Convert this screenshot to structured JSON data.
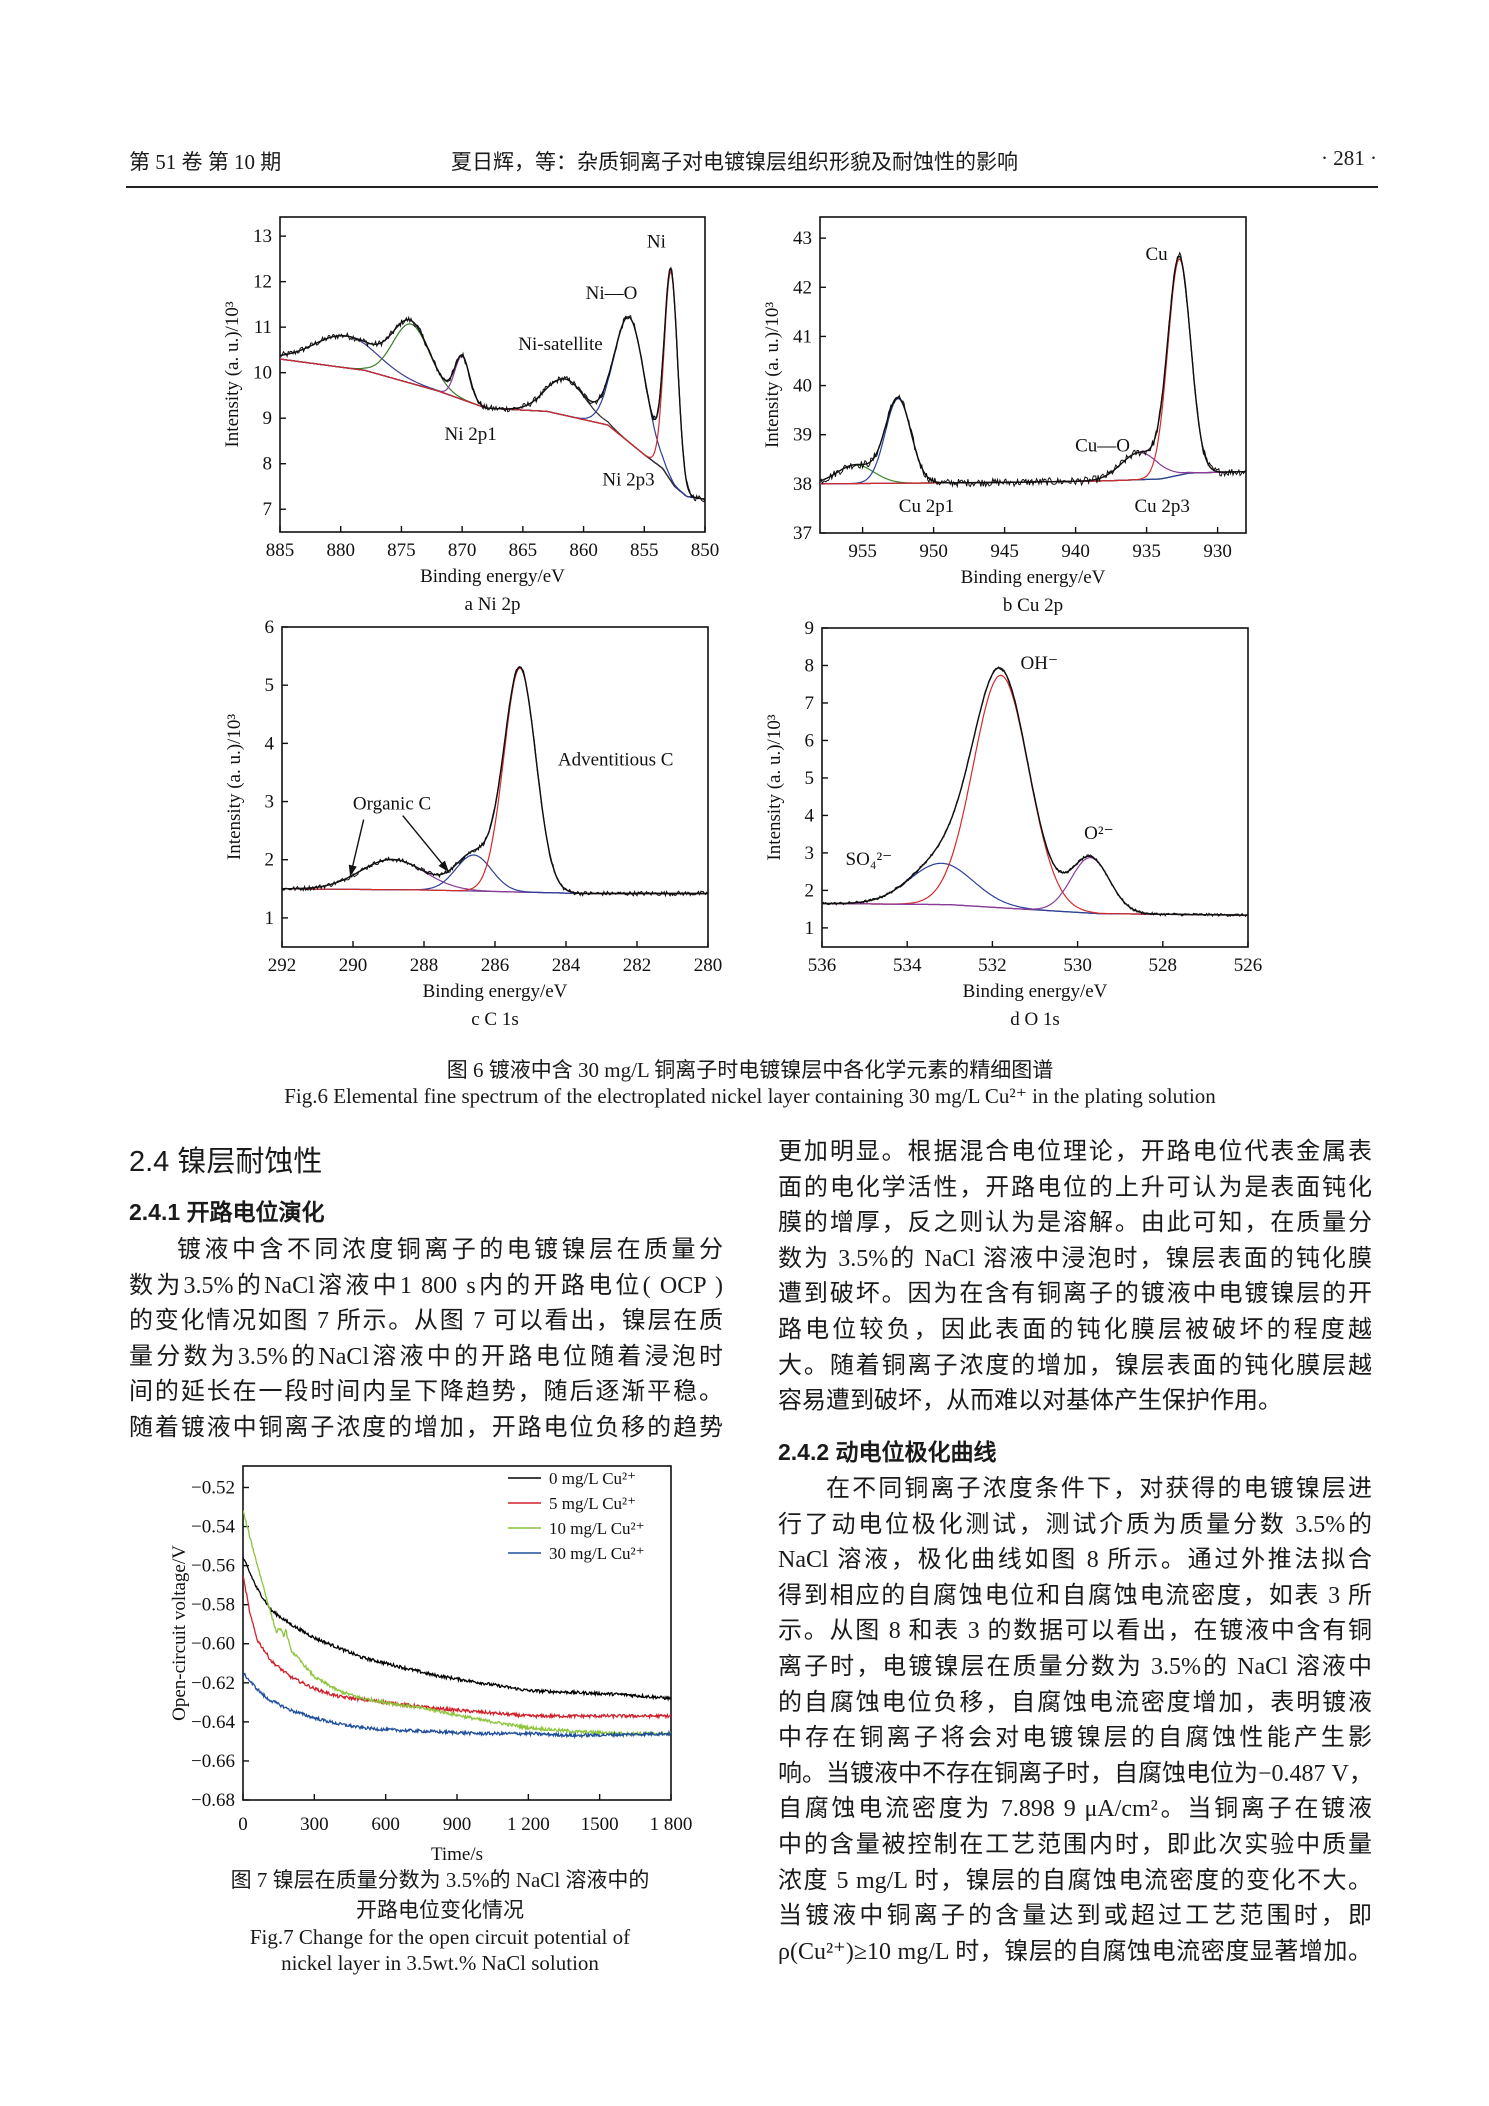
{
  "header": {
    "volume_issue": "第 51 卷  第 10 期",
    "title": "夏日辉，等：杂质铜离子对电镀镍层组织形貌及耐蚀性的影响",
    "page": "· 281 ·"
  },
  "figure6": {
    "caption_cn": "图 6   镀液中含 30 mg/L 铜离子时电镀镍层中各化学元素的精细图谱",
    "caption_en": "Fig.6 Elemental fine spectrum of the electroplated nickel layer containing 30 mg/L Cu²⁺ in the plating solution"
  },
  "section": {
    "heading": "2.4   镍层耐蚀性",
    "sub1": "2.4.1   开路电位演化",
    "sub2": "2.4.2   动电位极化曲线"
  },
  "left_lines": [
    "镀液中含不同浓度铜离子的电镀镍层在质量分",
    "数为3.5%的NaCl溶液中1 800 s内的开路电位( OCP )",
    "的变化情况如图 7 所示。从图 7 可以看出，镍层在质",
    "量分数为3.5%的NaCl溶液中的开路电位随着浸泡时",
    "间的延长在一段时间内呈下降趋势，随后逐渐平稳。",
    "随着镀液中铜离子浓度的增加，开路电位负移的趋势"
  ],
  "right_lines_a": [
    "更加明显。根据混合电位理论，开路电位代表金属表",
    "面的电化学活性，开路电位的上升可认为是表面钝化",
    "膜的增厚，反之则认为是溶解。由此可知，在质量分",
    "数为 3.5%的 NaCl 溶液中浸泡时，镍层表面的钝化膜",
    "遭到破坏。因为在含有铜离子的镀液中电镀镍层的开",
    "路电位较负，因此表面的钝化膜层被破坏的程度越",
    "大。随着铜离子浓度的增加，镍层表面的钝化膜层越",
    "容易遭到破坏，从而难以对基体产生保护作用。"
  ],
  "right_lines_b": [
    "在不同铜离子浓度条件下，对获得的电镀镍层进",
    "行了动电位极化测试，测试介质为质量分数 3.5%的",
    "NaCl 溶液，极化曲线如图 8 所示。通过外推法拟合",
    "得到相应的自腐蚀电位和自腐蚀电流密度，如表 3 所",
    "示。从图 8 和表 3 的数据可以看出，在镀液中含有铜",
    "离子时，电镀镍层在质量分数为 3.5%的 NaCl 溶液中",
    "的自腐蚀电位负移，自腐蚀电流密度增加，表明镀液",
    "中存在铜离子将会对电镀镍层的自腐蚀性能产生影",
    "响。当镀液中不存在铜离子时，自腐蚀电位为−0.487 V，",
    "自腐蚀电流密度为 7.898 9 μA/cm²。当铜离子在镀液",
    "中的含量被控制在工艺范围内时，即此次实验中质量",
    "浓度 5 mg/L 时，镍层的自腐蚀电流密度的变化不大。",
    "当镀液中铜离子的含量达到或超过工艺范围时，即",
    "ρ(Cu²⁺)≥10 mg/L 时，镍层的自腐蚀电流密度显著增加。"
  ],
  "figure7": {
    "caption_cn_1": "图 7    镍层在质量分数为 3.5%的 NaCl 溶液中的",
    "caption_cn_2": "开路电位变化情况",
    "caption_en_1": "Fig.7 Change for the open circuit potential of",
    "caption_en_2": "nickel layer in 3.5wt.% NaCl solution"
  },
  "chart_data": [
    {
      "type": "line",
      "subtitle": "a  Ni 2p",
      "xlabel": "Binding energy/eV",
      "ylabel": "Intensity (a. u.)/10³",
      "xlim": [
        885,
        850
      ],
      "ylim": [
        6.5,
        13.42
      ],
      "xticks": [
        885,
        880,
        875,
        870,
        865,
        860,
        855,
        850
      ],
      "yticks": [
        7,
        8,
        9,
        10,
        11,
        12,
        13
      ],
      "background": [
        [
          885,
          10.3
        ],
        [
          878,
          10.05
        ],
        [
          872,
          9.6
        ],
        [
          868,
          9.22
        ],
        [
          863,
          9.15
        ],
        [
          858,
          8.85
        ],
        [
          855,
          8.2
        ],
        [
          853.5,
          7.9
        ],
        [
          852.5,
          7.5
        ],
        [
          851.5,
          7.28
        ],
        [
          850,
          7.22
        ]
      ],
      "components": [
        {
          "center": 879.6,
          "amplitude": 0.7,
          "sigma": 2.6,
          "color": "#3d3d8f"
        },
        {
          "center": 874.2,
          "amplitude": 1.3,
          "sigma": 1.5,
          "color": "#3d7a2a"
        },
        {
          "center": 870.0,
          "amplitude": 0.95,
          "sigma": 0.6,
          "color": "#8b3a9a"
        },
        {
          "center": 861.5,
          "amplitude": 0.8,
          "sigma": 1.6,
          "color": "#2a2a2a"
        },
        {
          "center": 856.2,
          "amplitude": 2.75,
          "sigma": 1.25,
          "color": "#2b3f9a"
        },
        {
          "center": 852.8,
          "amplitude": 4.6,
          "sigma": 0.55,
          "color": "#d42a2a"
        }
      ],
      "annotations": [
        "Ni",
        "Ni—O",
        "Ni-satellite",
        "Ni 2p1",
        "Ni 2p3"
      ]
    },
    {
      "type": "line",
      "subtitle": "b  Cu 2p",
      "xlabel": "Binding energy/eV",
      "ylabel": "Intensity (a. u.)/10³",
      "xlim": [
        958,
        928
      ],
      "ylim": [
        37,
        43.43
      ],
      "xticks": [
        955,
        950,
        945,
        940,
        935,
        930
      ],
      "yticks": [
        37,
        38,
        39,
        40,
        41,
        42,
        43
      ],
      "background": [
        [
          958,
          38.0
        ],
        [
          945,
          38.03
        ],
        [
          938,
          38.06
        ],
        [
          934,
          38.1
        ],
        [
          932,
          38.22
        ],
        [
          928,
          38.25
        ]
      ],
      "components": [
        {
          "center": 955.5,
          "amplitude": 0.38,
          "sigma": 1.3,
          "color": "#3d8a2a"
        },
        {
          "center": 952.5,
          "amplitude": 1.72,
          "sigma": 0.9,
          "color": "#2b3f9a"
        },
        {
          "center": 935.5,
          "amplitude": 0.55,
          "sigma": 1.3,
          "color": "#8b3a9a"
        },
        {
          "center": 932.7,
          "amplitude": 4.4,
          "sigma": 0.8,
          "color": "#d42a2a"
        }
      ],
      "annotations": [
        "Cu",
        "Cu—O",
        "Cu 2p1",
        "Cu 2p3"
      ]
    },
    {
      "type": "line",
      "subtitle": "c  C 1s",
      "xlabel": "Binding energy/eV",
      "ylabel": "Intensity (a. u.)/10³",
      "xlim": [
        292,
        280
      ],
      "ylim": [
        0.5,
        6.0
      ],
      "xticks": [
        292,
        290,
        288,
        286,
        284,
        282,
        280
      ],
      "yticks": [
        1,
        2,
        3,
        4,
        5,
        6
      ],
      "background": [
        [
          292,
          1.5
        ],
        [
          288,
          1.48
        ],
        [
          285,
          1.44
        ],
        [
          283.5,
          1.42
        ],
        [
          280,
          1.42
        ]
      ],
      "components": [
        {
          "center": 288.9,
          "amplitude": 0.52,
          "sigma": 0.9,
          "color": "#8b3a9a"
        },
        {
          "center": 286.6,
          "amplitude": 0.62,
          "sigma": 0.5,
          "color": "#2b3f9a"
        },
        {
          "center": 285.3,
          "amplitude": 3.85,
          "sigma": 0.45,
          "color": "#d42a2a"
        }
      ],
      "annotations": [
        "Adventitious C",
        "Organic C"
      ]
    },
    {
      "type": "line",
      "subtitle": "d  O 1s",
      "xlabel": "Binding energy/eV",
      "ylabel": "Intensity (a. u.)/10³",
      "xlim": [
        536,
        526
      ],
      "ylim": [
        0.49,
        9
      ],
      "xticks": [
        536,
        534,
        532,
        530,
        528,
        526
      ],
      "yticks": [
        1,
        2,
        3,
        4,
        5,
        6,
        7,
        8,
        9
      ],
      "background": [
        [
          536,
          1.65
        ],
        [
          533,
          1.62
        ],
        [
          531,
          1.48
        ],
        [
          529.5,
          1.38
        ],
        [
          526,
          1.34
        ]
      ],
      "components": [
        {
          "center": 533.2,
          "amplitude": 1.1,
          "sigma": 0.75,
          "color": "#2b3f9a"
        },
        {
          "center": 531.8,
          "amplitude": 6.2,
          "sigma": 0.65,
          "color": "#d42a2a"
        },
        {
          "center": 529.7,
          "amplitude": 1.48,
          "sigma": 0.45,
          "color": "#8b3a9a"
        }
      ],
      "annotations": [
        "OH⁻",
        "O²⁻",
        "SO₄²⁻"
      ]
    },
    {
      "type": "line",
      "xlabel": "Time/s",
      "ylabel": "Open-circuit voltage/V",
      "xlim": [
        0,
        1800
      ],
      "ylim": [
        -0.68,
        -0.509
      ],
      "xticks": [
        0,
        300,
        600,
        900,
        1200,
        1500,
        1800
      ],
      "xtick_labels": [
        "0",
        "300",
        "600",
        "900",
        "1 200",
        "1500",
        "1 800"
      ],
      "yticks": [
        -0.52,
        -0.54,
        -0.56,
        -0.58,
        -0.6,
        -0.62,
        -0.64,
        -0.66,
        -0.68
      ],
      "ytick_labels": [
        "−0.52",
        "−0.54",
        "−0.56",
        "−0.58",
        "−0.60",
        "−0.62",
        "−0.64",
        "−0.66",
        "−0.68"
      ],
      "legend": "top-right",
      "series": [
        {
          "name": "0 mg/L Cu²⁺",
          "color": "#000000",
          "points": [
            [
              0,
              -0.556
            ],
            [
              60,
              -0.572
            ],
            [
              120,
              -0.583
            ],
            [
              200,
              -0.59
            ],
            [
              300,
              -0.597
            ],
            [
              400,
              -0.602
            ],
            [
              500,
              -0.607
            ],
            [
              600,
              -0.61
            ],
            [
              800,
              -0.616
            ],
            [
              1000,
              -0.62
            ],
            [
              1200,
              -0.624
            ],
            [
              1400,
              -0.625
            ],
            [
              1600,
              -0.626
            ],
            [
              1800,
              -0.628
            ]
          ]
        },
        {
          "name": "5 mg/L Cu²⁺",
          "color": "#d0202a",
          "points": [
            [
              0,
              -0.565
            ],
            [
              30,
              -0.585
            ],
            [
              60,
              -0.598
            ],
            [
              120,
              -0.609
            ],
            [
              200,
              -0.617
            ],
            [
              300,
              -0.623
            ],
            [
              400,
              -0.627
            ],
            [
              600,
              -0.63
            ],
            [
              800,
              -0.633
            ],
            [
              1000,
              -0.635
            ],
            [
              1200,
              -0.637
            ],
            [
              1500,
              -0.637
            ],
            [
              1800,
              -0.637
            ]
          ]
        },
        {
          "name": "10 mg/L Cu²⁺",
          "color": "#8cc43c",
          "points": [
            [
              0,
              -0.532
            ],
            [
              50,
              -0.555
            ],
            [
              100,
              -0.577
            ],
            [
              140,
              -0.594
            ],
            [
              155,
              -0.592
            ],
            [
              170,
              -0.596
            ],
            [
              180,
              -0.593
            ],
            [
              200,
              -0.603
            ],
            [
              300,
              -0.617
            ],
            [
              400,
              -0.624
            ],
            [
              500,
              -0.628
            ],
            [
              600,
              -0.63
            ],
            [
              800,
              -0.634
            ],
            [
              1000,
              -0.639
            ],
            [
              1200,
              -0.643
            ],
            [
              1400,
              -0.645
            ],
            [
              1600,
              -0.646
            ],
            [
              1800,
              -0.646
            ]
          ]
        },
        {
          "name": "30 mg/L Cu²⁺",
          "color": "#1f4e9c",
          "points": [
            [
              0,
              -0.615
            ],
            [
              50,
              -0.622
            ],
            [
              100,
              -0.628
            ],
            [
              200,
              -0.634
            ],
            [
              300,
              -0.638
            ],
            [
              400,
              -0.641
            ],
            [
              500,
              -0.643
            ],
            [
              600,
              -0.644
            ],
            [
              800,
              -0.645
            ],
            [
              1000,
              -0.646
            ],
            [
              1200,
              -0.646
            ],
            [
              1400,
              -0.647
            ],
            [
              1800,
              -0.646
            ]
          ]
        }
      ]
    }
  ]
}
